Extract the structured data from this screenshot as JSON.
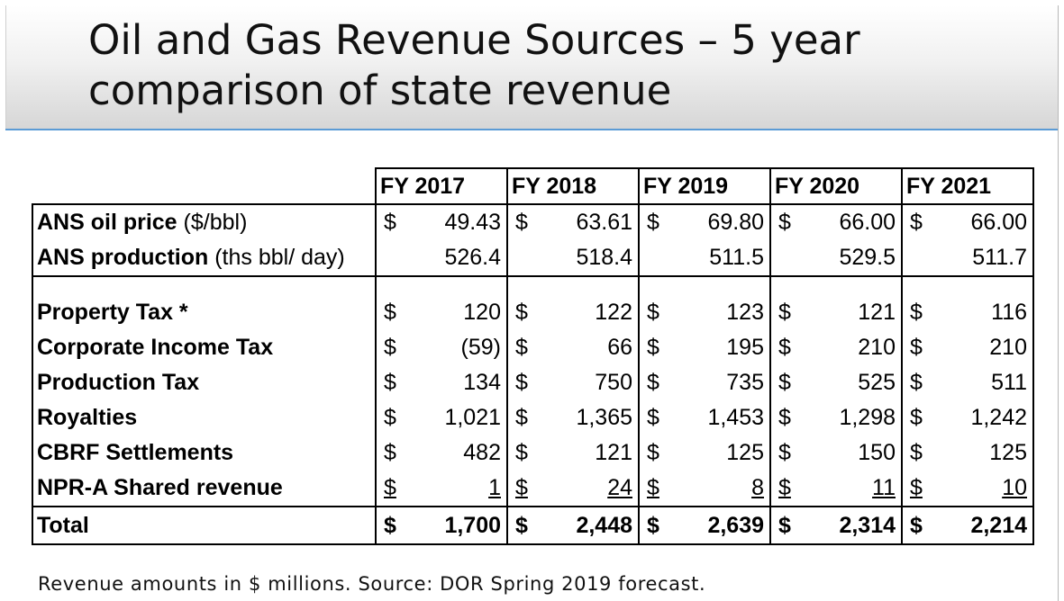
{
  "title": {
    "line1": "Oil and Gas Revenue Sources – 5 year",
    "line2": "comparison of state revenue"
  },
  "table": {
    "headers": [
      "FY 2017",
      "FY 2018",
      "FY 2019",
      "FY 2020",
      "FY 2021"
    ],
    "oil_price": {
      "label": "ANS oil price",
      "unit": "($/bbl)",
      "currency": "$",
      "values": [
        "49.43",
        "63.61",
        "69.80",
        "66.00",
        "66.00"
      ]
    },
    "production": {
      "label": "ANS production",
      "unit": "(ths bbl/ day)",
      "values": [
        "526.4",
        "518.4",
        "511.5",
        "529.5",
        "511.7"
      ]
    },
    "currency": "$",
    "rows": [
      {
        "label": "Property Tax *",
        "values": [
          "120",
          "122",
          "123",
          "121",
          "116"
        ]
      },
      {
        "label": "Corporate Income Tax",
        "values": [
          "(59)",
          "66",
          "195",
          "210",
          "210"
        ]
      },
      {
        "label": "Production Tax",
        "values": [
          "134",
          "750",
          "735",
          "525",
          "511"
        ]
      },
      {
        "label": "Royalties",
        "values": [
          "1,021",
          "1,365",
          "1,453",
          "1,298",
          "1,242"
        ]
      },
      {
        "label": "CBRF Settlements",
        "values": [
          "482",
          "121",
          "125",
          "150",
          "125"
        ]
      },
      {
        "label": "NPR-A Shared revenue",
        "values": [
          "1",
          "24",
          "8",
          "11",
          "10"
        ]
      }
    ],
    "total": {
      "label": "Total",
      "values": [
        "1,700",
        "2,448",
        "2,639",
        "2,314",
        "2,214"
      ]
    }
  },
  "footnote": "Revenue amounts in $ millions. Source: DOR Spring 2019 forecast."
}
